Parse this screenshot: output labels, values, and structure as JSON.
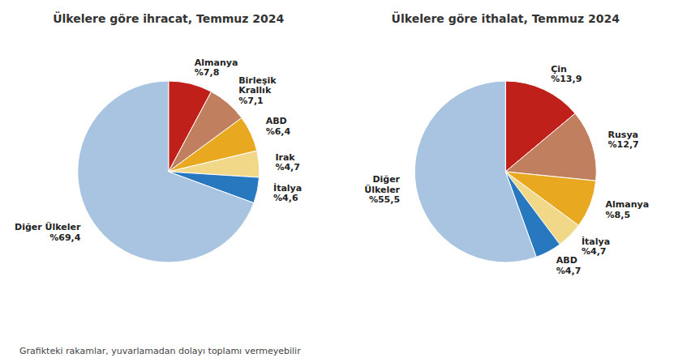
{
  "chart_data": [
    {
      "type": "pie",
      "title": "Ülkelere göre ihracat, Temmuz 2024",
      "categories": [
        "Almanya",
        "Birleşik\nKrallık",
        "ABD",
        "Irak",
        "İtalya",
        "Diğer Ülkeler"
      ],
      "values": [
        7.8,
        7.1,
        6.4,
        4.7,
        4.6,
        69.4
      ],
      "value_labels": [
        "%7,8",
        "%7,1",
        "%6,4",
        "%4,7",
        "%4,6",
        "%69,4"
      ],
      "colors": [
        "#c0201a",
        "#c08060",
        "#e8a820",
        "#f0d888",
        "#2878c0",
        "#a8c4e0"
      ],
      "data_labels": true
    },
    {
      "type": "pie",
      "title": "Ülkelere göre ithalat, Temmuz 2024",
      "categories": [
        "Çin",
        "Rusya",
        "Almanya",
        "İtalya",
        "ABD",
        "Diğer\nÜlkeler"
      ],
      "values": [
        13.9,
        12.7,
        8.5,
        4.7,
        4.7,
        55.5
      ],
      "value_labels": [
        "%13,9",
        "%12,7",
        "%8,5",
        "%4,7",
        "%4,7",
        "%55,5"
      ],
      "colors": [
        "#c0201a",
        "#c08060",
        "#e8a820",
        "#f0d888",
        "#2878c0",
        "#a8c4e0"
      ],
      "data_labels": true
    }
  ],
  "footnote": "Grafikteki rakamlar, yuvarlamadan dolayı toplamı vermeyebilir"
}
